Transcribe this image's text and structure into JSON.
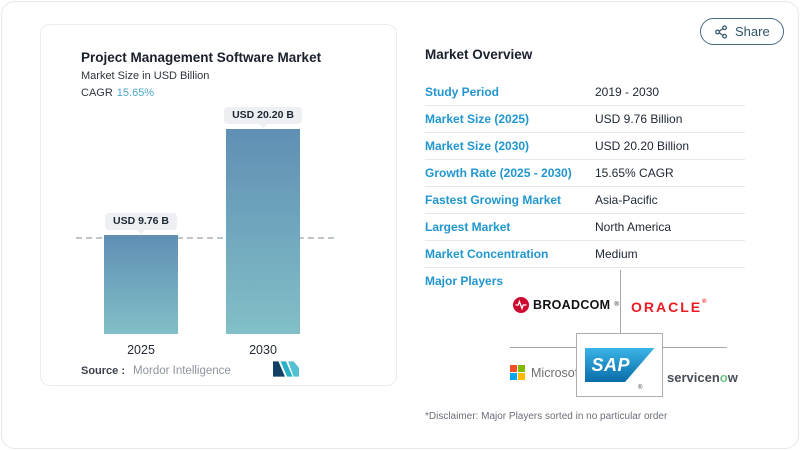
{
  "share": {
    "label": "Share"
  },
  "chart": {
    "title": "Project Management Software Market",
    "subtitle": "Market Size in USD Billion",
    "cagr_label": "CAGR",
    "cagr_value": "15.65%",
    "source_label": "Source :",
    "source_value": "Mordor Intelligence"
  },
  "chart_data": {
    "type": "bar",
    "title": "Project Management Software Market",
    "subtitle": "Market Size in USD Billion",
    "cagr": "15.65%",
    "categories": [
      "2025",
      "2030"
    ],
    "values": [
      9.76,
      20.2
    ],
    "value_labels": [
      "USD 9.76 B",
      "USD 20.20 B"
    ],
    "unit": "USD Billion",
    "ylim": [
      0,
      22
    ],
    "grid": false,
    "reference_line_at": 9.76,
    "legend": "none",
    "source": "Mordor Intelligence"
  },
  "overview": {
    "title": "Market Overview",
    "rows": [
      {
        "label": "Study Period",
        "value": "2019 - 2030"
      },
      {
        "label": "Market Size (2025)",
        "value": "USD 9.76 Billion"
      },
      {
        "label": "Market Size (2030)",
        "value": "USD 20.20 Billion"
      },
      {
        "label": "Growth Rate (2025 - 2030)",
        "value": "15.65% CAGR"
      },
      {
        "label": "Fastest Growing Market",
        "value": "Asia-Pacific"
      },
      {
        "label": "Largest Market",
        "value": "North America"
      },
      {
        "label": "Market Concentration",
        "value": "Medium"
      }
    ],
    "major_players_label": "Major Players",
    "disclaimer": "*Disclaimer: Major Players sorted in no particular order"
  },
  "players": {
    "broadcom": "BROADCOM",
    "oracle": "ORACLE",
    "microsoft": "Microsoft",
    "sap": "SAP",
    "servicenow_parts": [
      "servicen",
      "o",
      "w"
    ],
    "registered_mark": "®"
  },
  "colors": {
    "accent_blue": "#2196cf",
    "cagr_teal": "#4ba8c8",
    "bar_top": "#5f8fb4",
    "bar_bottom": "#82bfc7",
    "badge_bg": "#edeff2",
    "broadcom_red": "#cc092f",
    "oracle_red": "#ea1b22",
    "sap_blue_top": "#3ab4e6",
    "sap_blue_bottom": "#0a6ca8",
    "servicenow_green": "#72c088",
    "microsoft_squares": [
      "#f25022",
      "#7fba00",
      "#00a4ef",
      "#ffb900"
    ],
    "mordor_navy": "#123f66",
    "mordor_teal": "#29b0c8",
    "share_border": "#4a6b82"
  }
}
